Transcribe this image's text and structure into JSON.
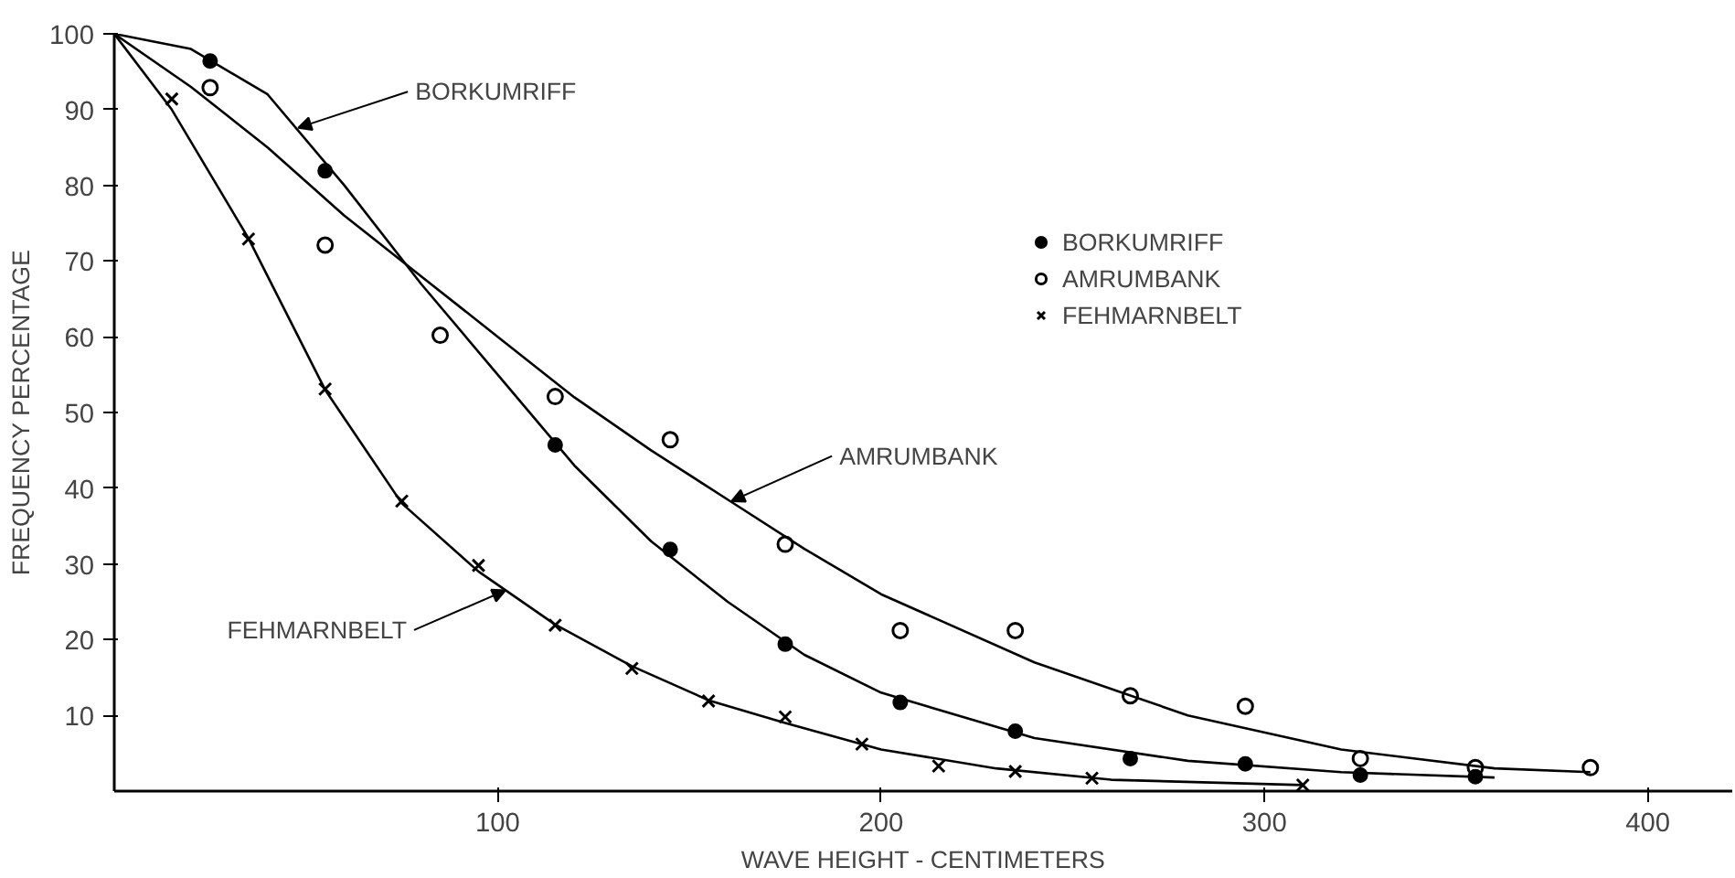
{
  "chart_data": {
    "type": "scatter",
    "xlabel": "WAVE HEIGHT - CENTIMETERS",
    "ylabel": "FREQUENCY PERCENTAGE",
    "xlim": [
      0,
      422
    ],
    "ylim": [
      0,
      100
    ],
    "xticks": [
      100,
      200,
      300,
      400
    ],
    "yticks": [
      10,
      20,
      30,
      40,
      50,
      60,
      70,
      80,
      90,
      100
    ],
    "grid": false,
    "legend": "top right",
    "series": [
      {
        "name": "BORKUMRIFF",
        "marker": "circle",
        "color": "#000000",
        "x": [
          25,
          55,
          115,
          145,
          175,
          205,
          235,
          265,
          295,
          325,
          355
        ],
        "values": [
          96.4,
          81.9,
          45.7,
          31.9,
          19.4,
          11.7,
          7.9,
          4.3,
          3.6,
          2.1,
          1.9
        ]
      },
      {
        "name": "AMRUMBANK",
        "marker": "circle_open",
        "color": "#000000",
        "x": [
          25,
          55,
          85,
          115,
          145,
          175,
          205,
          235,
          265,
          295,
          325,
          355,
          385
        ],
        "values": [
          92.9,
          72.1,
          60.2,
          52.1,
          46.4,
          32.6,
          21.2,
          21.2,
          12.6,
          11.2,
          4.3,
          3.1,
          3.1
        ]
      },
      {
        "name": "FEHMARNBELT",
        "marker": "cross",
        "color": "#000000",
        "x": [
          15,
          35,
          55,
          75,
          95,
          115,
          135,
          155,
          175,
          195,
          215,
          235,
          255,
          310
        ],
        "values": [
          91.4,
          72.9,
          53.1,
          38.3,
          29.8,
          21.9,
          16.2,
          11.9,
          9.8,
          6.2,
          3.3,
          2.6,
          1.7,
          0.8
        ]
      },
      {
        "type": "line",
        "line_style": "solid",
        "color": "#000000",
        "x": [
          0,
          20,
          40,
          60,
          80,
          100,
          120,
          140,
          160,
          180,
          200,
          240,
          280,
          320,
          360
        ],
        "values": [
          100,
          98,
          92,
          80,
          67,
          55,
          43,
          33,
          25,
          18,
          13,
          7,
          4,
          2.5,
          1.8
        ]
      },
      {
        "type": "line",
        "line_style": "solid",
        "color": "#000000",
        "x": [
          0,
          20,
          40,
          60,
          80,
          100,
          120,
          140,
          160,
          180,
          200,
          240,
          280,
          320,
          360,
          385
        ],
        "values": [
          100,
          93,
          85,
          76,
          68,
          60,
          52,
          45,
          38.5,
          32,
          26,
          17,
          10,
          5.5,
          3,
          2.5
        ]
      },
      {
        "type": "line",
        "line_style": "solid",
        "color": "#000000",
        "x": [
          0,
          15,
          35,
          55,
          75,
          95,
          115,
          135,
          155,
          175,
          200,
          230,
          260,
          310
        ],
        "values": [
          100,
          90,
          73,
          53,
          38,
          29,
          22,
          16.5,
          12,
          9,
          5.5,
          3,
          1.5,
          0.8
        ]
      }
    ],
    "annotations": [
      {
        "text": "BORKUMRIFF",
        "x": 48,
        "y": 87.6
      },
      {
        "text": "AMRUMBANK",
        "x": 161,
        "y": 38.3
      },
      {
        "text": "FEHMARNBELT",
        "x": 102,
        "y": 26.5
      }
    ]
  }
}
